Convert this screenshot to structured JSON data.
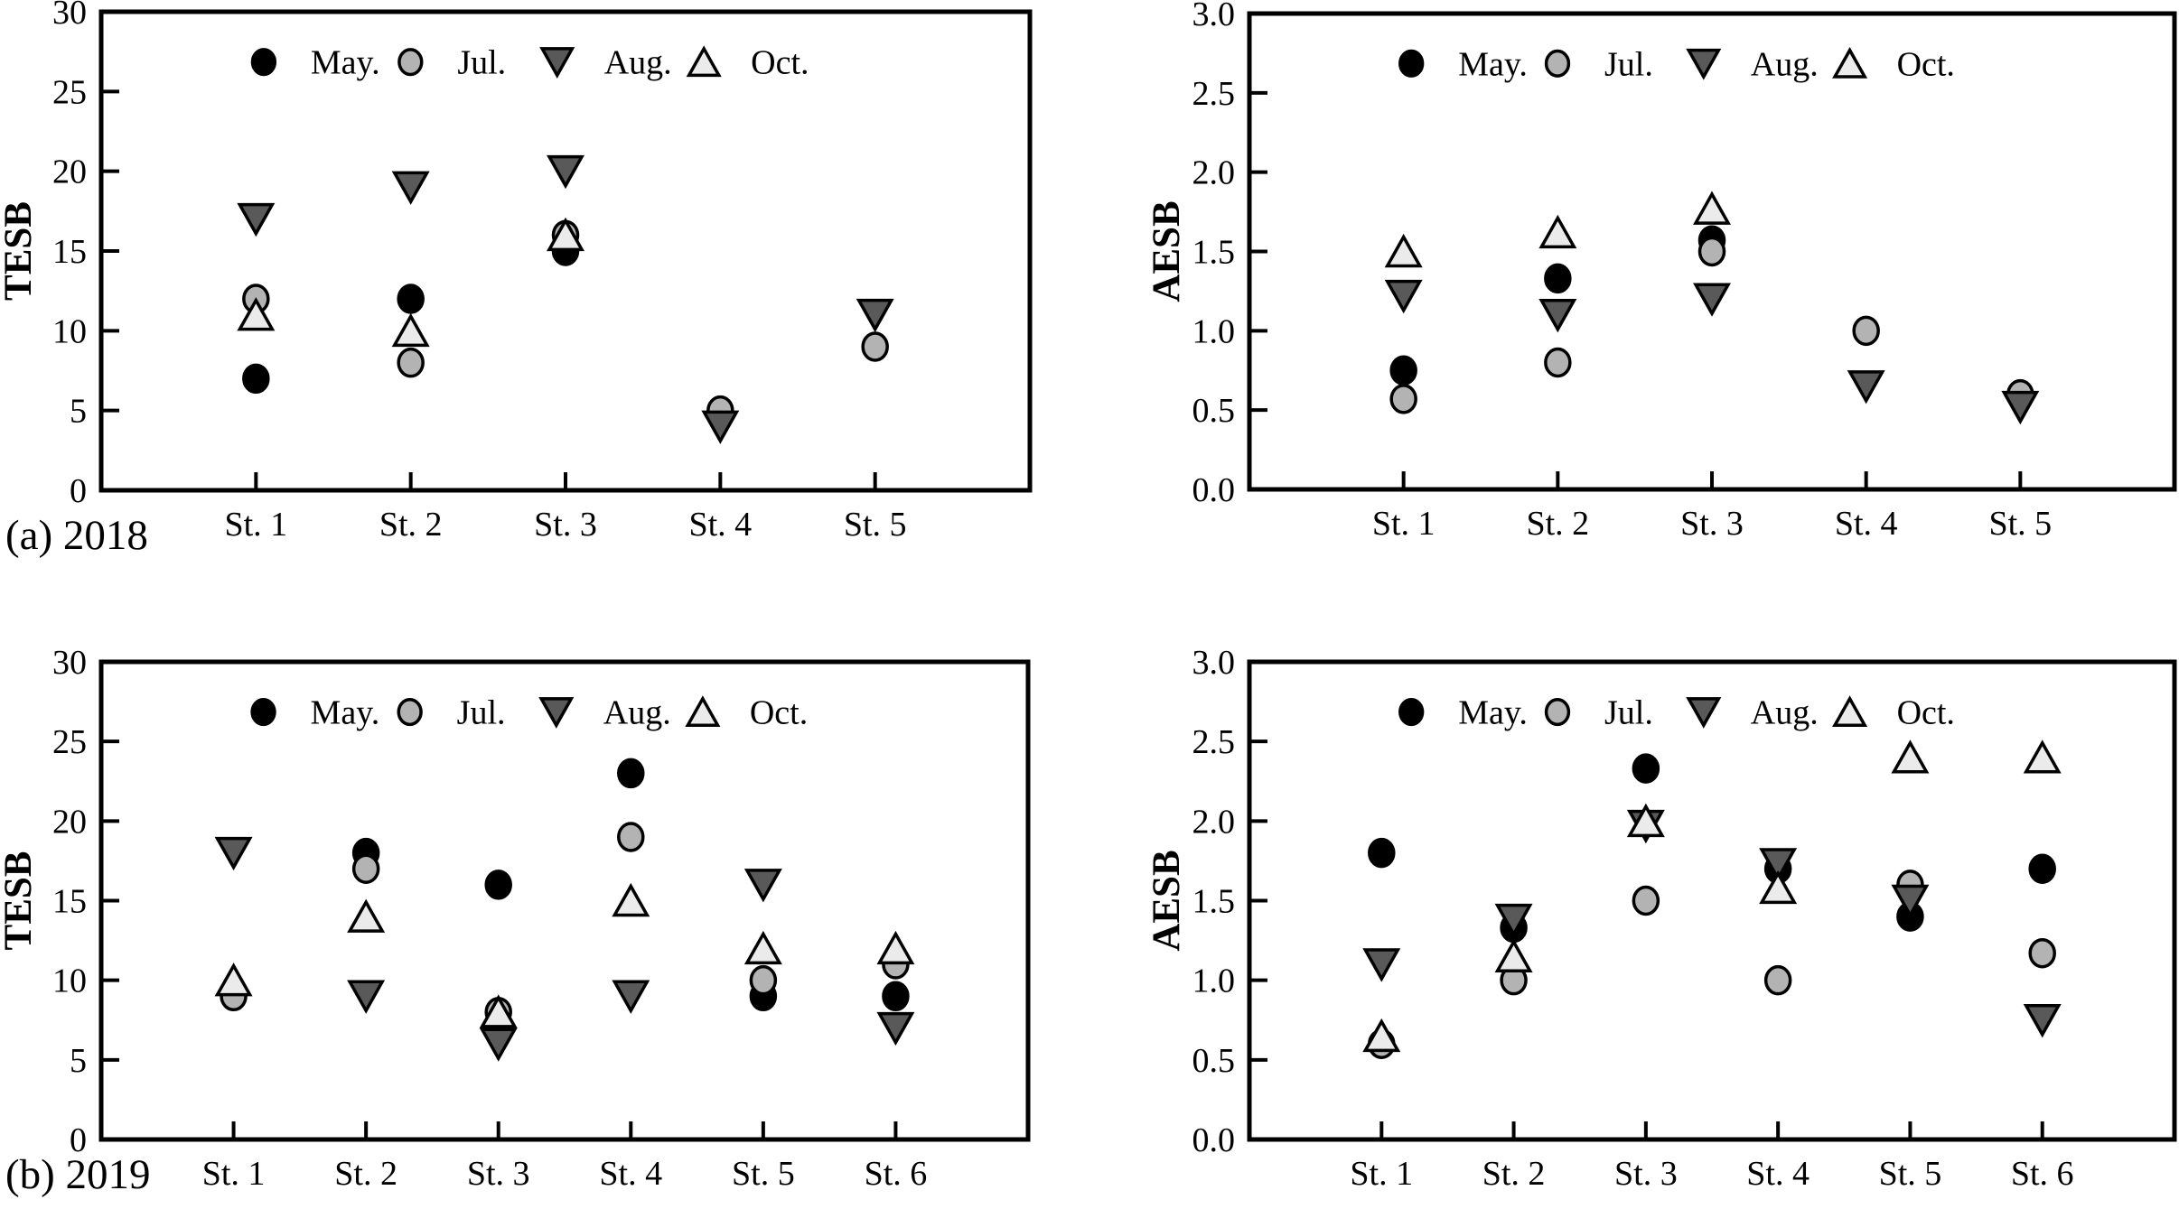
{
  "figure": {
    "captions": {
      "a": "(a) 2018",
      "b": "(b) 2019"
    }
  },
  "chart_data": [
    {
      "type": "scatter",
      "id": "tesb-2018",
      "title": "",
      "xlabel": "",
      "ylabel": "TESB",
      "ylim": [
        0,
        30
      ],
      "yticks": [
        0,
        5,
        10,
        15,
        20,
        25,
        30
      ],
      "ytick_labels": [
        "0",
        "5",
        "10",
        "15",
        "20",
        "25",
        "30"
      ],
      "categories": [
        "St. 1",
        "St. 2",
        "St. 3",
        "St. 4",
        "St. 5"
      ],
      "grid": false,
      "legend_position": "top-inside",
      "series": [
        {
          "name": "May.",
          "marker": "circle",
          "fill": "#000000",
          "values": [
            7,
            12,
            15,
            null,
            null
          ]
        },
        {
          "name": "Jul.",
          "marker": "circle",
          "fill": "#b3b3b3",
          "values": [
            12,
            8,
            16,
            5,
            9
          ]
        },
        {
          "name": "Aug.",
          "marker": "triangle-down",
          "fill": "#595959",
          "values": [
            17,
            19,
            20,
            4,
            11
          ]
        },
        {
          "name": "Oct.",
          "marker": "triangle-up",
          "fill": "#ebebeb",
          "values": [
            11,
            10,
            16,
            null,
            null
          ]
        }
      ]
    },
    {
      "type": "scatter",
      "id": "aesb-2018",
      "title": "",
      "xlabel": "",
      "ylabel": "AESB",
      "ylim": [
        0,
        3
      ],
      "yticks": [
        0,
        0.5,
        1.0,
        1.5,
        2.0,
        2.5,
        3.0
      ],
      "ytick_labels": [
        "0.0",
        "0.5",
        "1.0",
        "1.5",
        "2.0",
        "2.5",
        "3.0"
      ],
      "categories": [
        "St. 1",
        "St. 2",
        "St. 3",
        "St. 4",
        "St. 5"
      ],
      "grid": false,
      "legend_position": "top-inside",
      "series": [
        {
          "name": "May.",
          "marker": "circle",
          "fill": "#000000",
          "values": [
            0.75,
            1.33,
            1.57,
            null,
            null
          ]
        },
        {
          "name": "Jul.",
          "marker": "circle",
          "fill": "#b3b3b3",
          "values": [
            0.57,
            0.8,
            1.5,
            1.0,
            0.6
          ]
        },
        {
          "name": "Aug.",
          "marker": "triangle-down",
          "fill": "#595959",
          "values": [
            1.22,
            1.1,
            1.2,
            0.65,
            0.52
          ]
        },
        {
          "name": "Oct.",
          "marker": "triangle-up",
          "fill": "#ebebeb",
          "values": [
            1.5,
            1.62,
            1.77,
            null,
            null
          ]
        }
      ]
    },
    {
      "type": "scatter",
      "id": "tesb-2019",
      "title": "",
      "xlabel": "",
      "ylabel": "TESB",
      "ylim": [
        0,
        30
      ],
      "yticks": [
        0,
        5,
        10,
        15,
        20,
        25,
        30
      ],
      "ytick_labels": [
        "0",
        "5",
        "10",
        "15",
        "20",
        "25",
        "30"
      ],
      "categories": [
        "St. 1",
        "St. 2",
        "St. 3",
        "St. 4",
        "St. 5",
        "St. 6"
      ],
      "grid": false,
      "legend_position": "top-inside",
      "series": [
        {
          "name": "May.",
          "marker": "circle",
          "fill": "#000000",
          "values": [
            null,
            18,
            16,
            23,
            9,
            9
          ]
        },
        {
          "name": "Jul.",
          "marker": "circle",
          "fill": "#b3b3b3",
          "values": [
            9,
            17,
            8,
            19,
            10,
            11
          ]
        },
        {
          "name": "Aug.",
          "marker": "triangle-down",
          "fill": "#595959",
          "values": [
            18,
            9,
            6,
            9,
            16,
            7
          ]
        },
        {
          "name": "Oct.",
          "marker": "triangle-up",
          "fill": "#ebebeb",
          "values": [
            10,
            14,
            8,
            15,
            12,
            12
          ]
        }
      ]
    },
    {
      "type": "scatter",
      "id": "aesb-2019",
      "title": "",
      "xlabel": "",
      "ylabel": "AESB",
      "ylim": [
        0,
        3
      ],
      "yticks": [
        0,
        0.5,
        1.0,
        1.5,
        2.0,
        2.5,
        3.0
      ],
      "ytick_labels": [
        "0.0",
        "0.5",
        "1.0",
        "1.5",
        "2.0",
        "2.5",
        "3.0"
      ],
      "categories": [
        "St. 1",
        "St. 2",
        "St. 3",
        "St. 4",
        "St. 5",
        "St. 6"
      ],
      "grid": false,
      "legend_position": "top-inside",
      "series": [
        {
          "name": "May.",
          "marker": "circle",
          "fill": "#000000",
          "values": [
            1.8,
            1.33,
            2.33,
            1.7,
            1.4,
            1.7
          ]
        },
        {
          "name": "Jul.",
          "marker": "circle",
          "fill": "#b3b3b3",
          "values": [
            0.6,
            1.0,
            1.5,
            1.0,
            1.6,
            1.17
          ]
        },
        {
          "name": "Aug.",
          "marker": "triangle-down",
          "fill": "#595959",
          "values": [
            1.1,
            1.38,
            1.97,
            1.73,
            1.5,
            0.75
          ]
        },
        {
          "name": "Oct.",
          "marker": "triangle-up",
          "fill": "#ebebeb",
          "values": [
            0.65,
            1.15,
            2.0,
            1.58,
            2.4,
            2.4
          ]
        }
      ]
    }
  ]
}
